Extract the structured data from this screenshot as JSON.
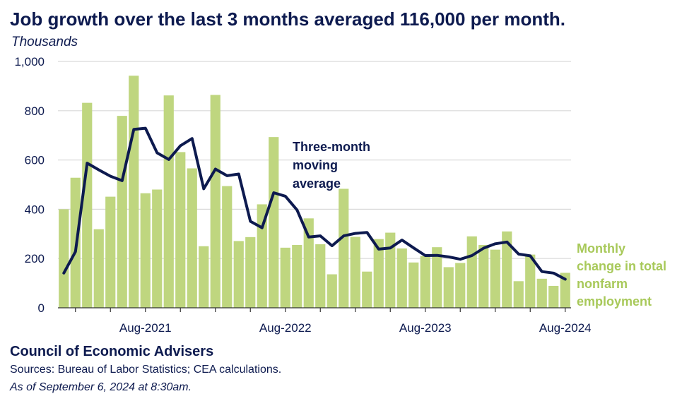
{
  "header": {
    "title": "Job growth over the last 3 months averaged 116,000 per month.",
    "units": "Thousands"
  },
  "footer": {
    "org": "Council of Economic Advisers",
    "sources": "Sources: Bureau of Labor Statistics; CEA calculations.",
    "as_of": "As of September 6, 2024 at 8:30am."
  },
  "colors": {
    "bar": "#bfd67f",
    "line": "#0d1a4f",
    "grid": "#d9d9d9",
    "bar_label": "#a8c95a"
  },
  "chart_data": {
    "type": "bar",
    "title": "Job growth over the last 3 months averaged 116,000 per month.",
    "ylabel": "Thousands",
    "ylim": [
      0,
      1000
    ],
    "yticks": [
      0,
      200,
      400,
      600,
      800,
      1000
    ],
    "ytick_labels": [
      "0",
      "200",
      "400",
      "600",
      "800",
      "1,000"
    ],
    "grid": true,
    "categories": [
      "Jan-2021",
      "Feb-2021",
      "Mar-2021",
      "Apr-2021",
      "May-2021",
      "Jun-2021",
      "Jul-2021",
      "Aug-2021",
      "Sep-2021",
      "Oct-2021",
      "Nov-2021",
      "Dec-2021",
      "Jan-2022",
      "Feb-2022",
      "Mar-2022",
      "Apr-2022",
      "May-2022",
      "Jun-2022",
      "Jul-2022",
      "Aug-2022",
      "Sep-2022",
      "Oct-2022",
      "Nov-2022",
      "Dec-2022",
      "Jan-2023",
      "Feb-2023",
      "Mar-2023",
      "Apr-2023",
      "May-2023",
      "Jun-2023",
      "Jul-2023",
      "Aug-2023",
      "Sep-2023",
      "Oct-2023",
      "Nov-2023",
      "Dec-2023",
      "Jan-2024",
      "Feb-2024",
      "Mar-2024",
      "Apr-2024",
      "May-2024",
      "Jun-2024",
      "Jul-2024",
      "Aug-2024"
    ],
    "xtick_labels": [
      {
        "category": "Aug-2021",
        "label": "Aug-2021"
      },
      {
        "category": "Aug-2022",
        "label": "Aug-2022"
      },
      {
        "category": "Aug-2023",
        "label": "Aug-2023"
      },
      {
        "category": "Aug-2024",
        "label": "Aug-2024"
      }
    ],
    "series": [
      {
        "name": "Monthly change in total nonfarm employment",
        "type": "bar",
        "values": [
          400,
          528,
          832,
          319,
          451,
          779,
          942,
          465,
          480,
          862,
          632,
          566,
          250,
          864,
          494,
          271,
          287,
          420,
          693,
          244,
          255,
          363,
          258,
          136,
          483,
          288,
          147,
          279,
          305,
          241,
          184,
          210,
          246,
          165,
          182,
          290,
          255,
          236,
          310,
          108,
          216,
          118,
          89,
          142
        ]
      },
      {
        "name": "Three-month moving average",
        "type": "line",
        "values": [
          141,
          228,
          587,
          560,
          534,
          516,
          724,
          729,
          629,
          602,
          658,
          687,
          483,
          563,
          536,
          543,
          351,
          325,
          467,
          453,
          397,
          287,
          292,
          252,
          292,
          302,
          306,
          238,
          243,
          275,
          243,
          212,
          213,
          207,
          197,
          212,
          242,
          260,
          267,
          218,
          211,
          147,
          141,
          116
        ]
      }
    ],
    "annotations": [
      {
        "series": "Three-month moving average",
        "lines": [
          "Three-month",
          "moving",
          "average"
        ]
      },
      {
        "series": "Monthly change in total nonfarm employment",
        "lines": [
          "Monthly",
          "change in total",
          "nonfarm",
          "employment"
        ]
      }
    ]
  }
}
